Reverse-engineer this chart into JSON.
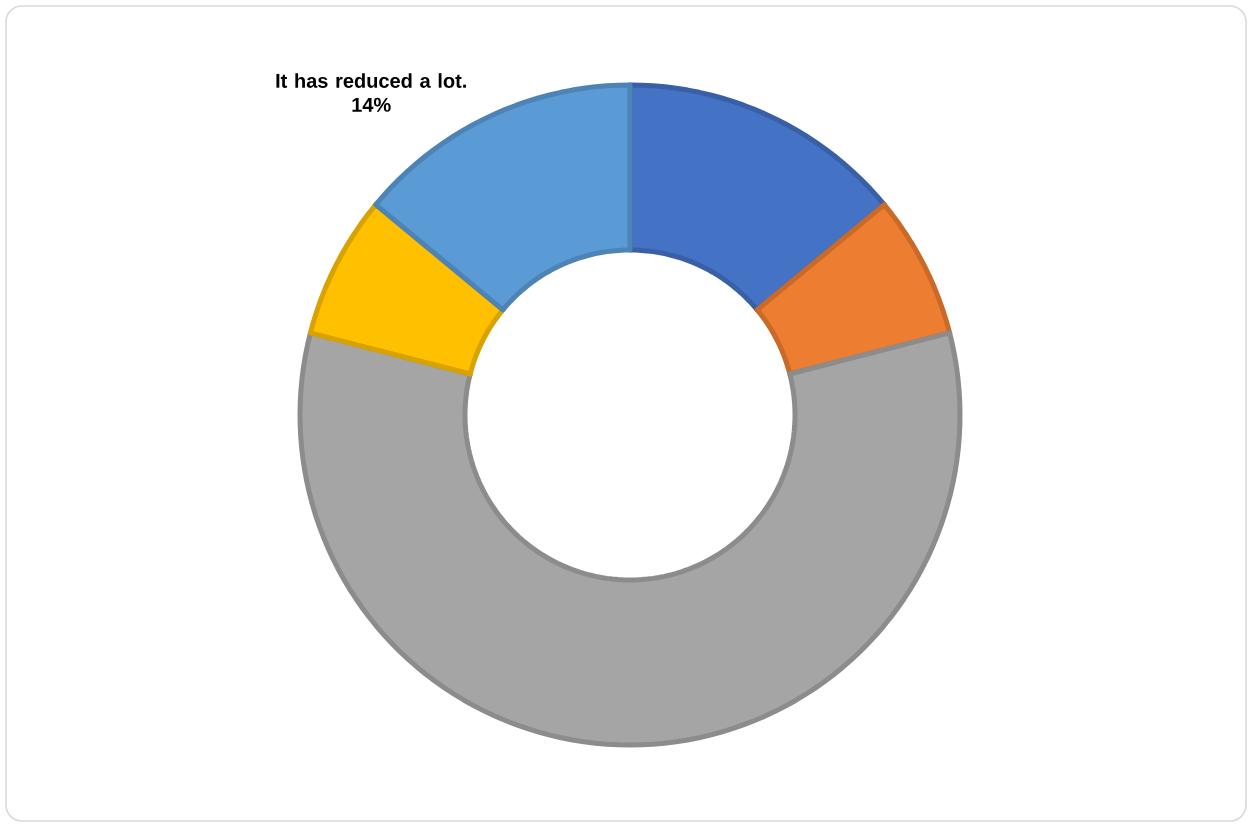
{
  "chart_data": {
    "type": "donut",
    "categories": [
      null,
      null,
      null,
      null,
      "It has reduced a lot."
    ],
    "values": [
      14,
      7,
      58,
      7,
      14
    ],
    "colors": [
      "#4472c4",
      "#ed7d31",
      "#a5a5a5",
      "#ffc000",
      "#5b9bd5"
    ],
    "value_labels": [
      null,
      null,
      null,
      null,
      "14%"
    ]
  }
}
